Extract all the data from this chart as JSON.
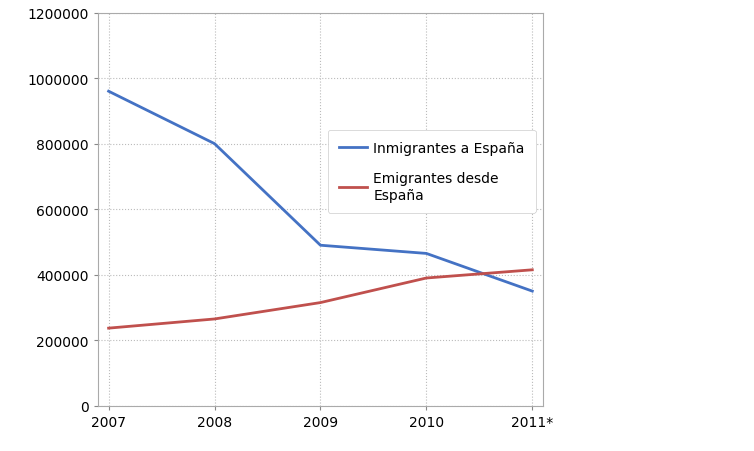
{
  "years": [
    "2007",
    "2008",
    "2009",
    "2010",
    "2011*"
  ],
  "inmigrantes": [
    960000,
    800000,
    490000,
    465000,
    350000
  ],
  "emigrantes": [
    237000,
    265000,
    315000,
    390000,
    415000
  ],
  "line1_color": "#4472C4",
  "line2_color": "#C0504D",
  "legend1": "Inmigrantes a España",
  "legend2": "Emigrantes desde\nEspaña",
  "ylim": [
    0,
    1200000
  ],
  "yticks": [
    0,
    200000,
    400000,
    600000,
    800000,
    1000000,
    1200000
  ],
  "background_color": "#FFFFFF",
  "plot_bg_color": "#FFFFFF",
  "grid_color": "#BBBBBB",
  "legend_fontsize": 10,
  "tick_fontsize": 10,
  "line_width": 2.0
}
